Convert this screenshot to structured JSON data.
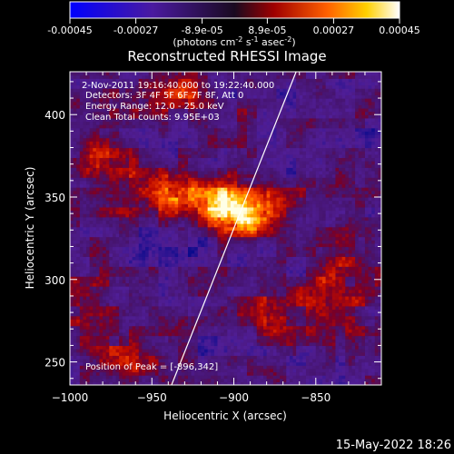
{
  "colorbar": {
    "tick_labels": [
      "-0.00045",
      "-0.00027",
      "-8.9e-05",
      "8.9e-05",
      "0.00027",
      "0.00045"
    ],
    "tick_values": [
      -0.00045,
      -0.00027,
      -8.9e-05,
      8.9e-05,
      0.00027,
      0.00045
    ],
    "range": [
      -0.00045,
      0.00045
    ],
    "unit_text": "(photons cm",
    "unit_exp1": "-2",
    "unit_mid": " s",
    "unit_exp2": "-1",
    "unit_mid2": " asec",
    "unit_exp3": "-2",
    "unit_end": ")"
  },
  "chart_data": {
    "type": "heatmap",
    "title": "Reconstructed RHESSI Image",
    "xlabel": "Heliocentric X (arcsec)",
    "ylabel": "Heliocentric Y (arcsec)",
    "xlim": [
      -1000,
      -810
    ],
    "ylim": [
      236,
      426
    ],
    "x_ticks": [
      -1000,
      -950,
      -900,
      -850
    ],
    "x_tick_labels": [
      "−1000",
      "−950",
      "−900",
      "−850"
    ],
    "y_ticks": [
      250,
      300,
      350,
      400
    ],
    "y_tick_labels": [
      "250",
      "300",
      "350",
      "400"
    ],
    "annotations": [
      "2-Nov-2011 19:16:40.000 to 19:22:40.000",
      "Detectors: 3F 4F 5F 6F 7F 8F, Att 0",
      "Energy Range: 12.0 - 25.0 keV",
      "Clean     Total counts: 9.95E+03"
    ],
    "peak_label": "Position of Peak = [-896,342]",
    "peak": [
      -896,
      342
    ],
    "limb_line": [
      [
        -938,
        236
      ],
      [
        -862,
        426
      ]
    ],
    "bright_regions": [
      {
        "x": -896,
        "y": 342,
        "sx": 14,
        "sy": 11,
        "amp": 1.0
      },
      {
        "x": -935,
        "y": 352,
        "sx": 20,
        "sy": 10,
        "amp": 0.65
      },
      {
        "x": -975,
        "y": 372,
        "sx": 14,
        "sy": 14,
        "amp": 0.5
      },
      {
        "x": -940,
        "y": 410,
        "sx": 18,
        "sy": 10,
        "amp": 0.45
      },
      {
        "x": -985,
        "y": 268,
        "sx": 14,
        "sy": 22,
        "amp": 0.4
      },
      {
        "x": -835,
        "y": 300,
        "sx": 16,
        "sy": 26,
        "amp": 0.35
      },
      {
        "x": -870,
        "y": 282,
        "sx": 14,
        "sy": 14,
        "amp": 0.3
      },
      {
        "x": -955,
        "y": 248,
        "sx": 12,
        "sy": 10,
        "amp": 0.3
      }
    ]
  },
  "footer": {
    "timestamp": "15-May-2022 18:26"
  }
}
